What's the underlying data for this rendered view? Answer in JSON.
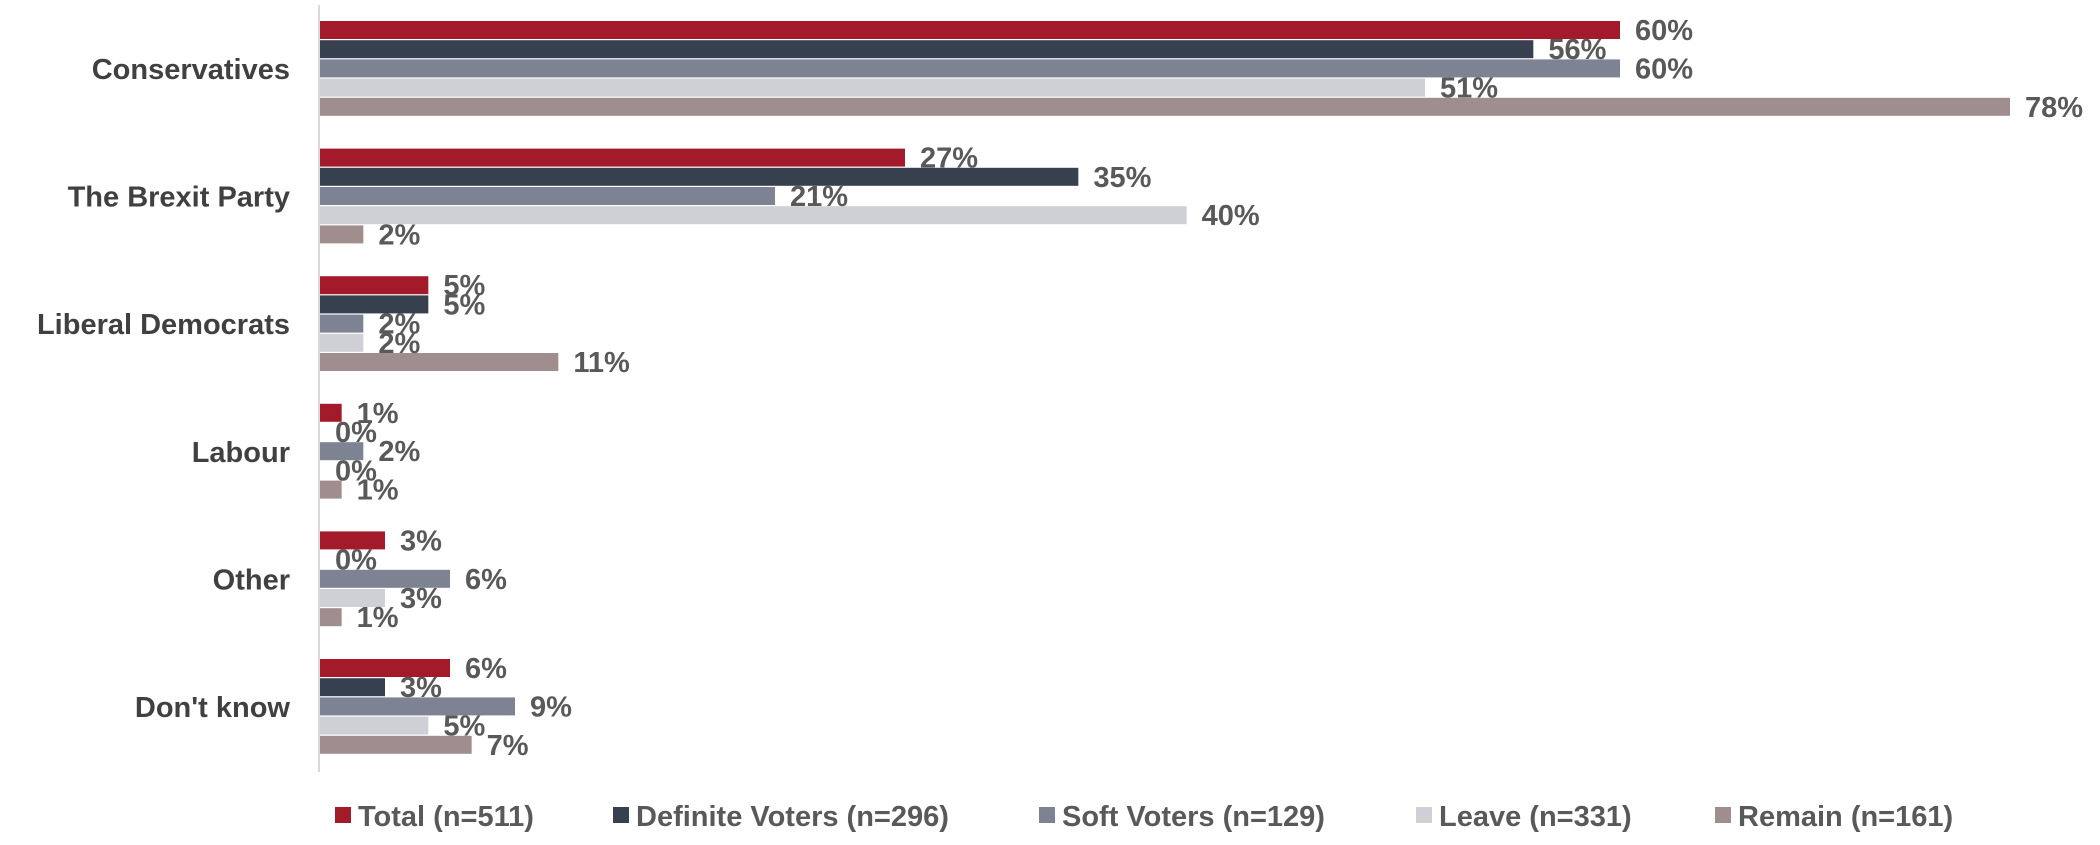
{
  "chart_data": {
    "type": "bar",
    "orientation": "horizontal",
    "title": "",
    "xlabel": "",
    "ylabel": "",
    "xlim": [
      0,
      80
    ],
    "grid": false,
    "legend_position": "bottom",
    "categories": [
      "Conservatives",
      "The Brexit Party",
      "Liberal Democrats",
      "Labour",
      "Other",
      "Don't know"
    ],
    "series": [
      {
        "name": "Total (n=511)",
        "color": "#a31b2a",
        "values": [
          60,
          27,
          5,
          1,
          3,
          6
        ],
        "labels": [
          "60%",
          "27%",
          "5%",
          "1%",
          "3%",
          "6%"
        ]
      },
      {
        "name": "Definite Voters (n=296)",
        "color": "#36404f",
        "values": [
          56,
          35,
          5,
          0,
          0,
          3
        ],
        "labels": [
          "56%",
          "35%",
          "5%",
          "0%",
          "0%",
          "3%"
        ]
      },
      {
        "name": "Soft Voters (n=129)",
        "color": "#7e8394",
        "values": [
          60,
          21,
          2,
          2,
          6,
          9
        ],
        "labels": [
          "60%",
          "21%",
          "2%",
          "2%",
          "6%",
          "9%"
        ]
      },
      {
        "name": "Leave (n=331)",
        "color": "#cfd0d6",
        "values": [
          51,
          40,
          2,
          0,
          3,
          5
        ],
        "labels": [
          "51%",
          "40%",
          "2%",
          "0%",
          "3%",
          "5%"
        ]
      },
      {
        "name": "Remain (n=161)",
        "color": "#a08e8e",
        "values": [
          78,
          2,
          11,
          1,
          1,
          7
        ],
        "labels": [
          "78%",
          "2%",
          "11%",
          "1%",
          "1%",
          "7%"
        ]
      }
    ]
  }
}
